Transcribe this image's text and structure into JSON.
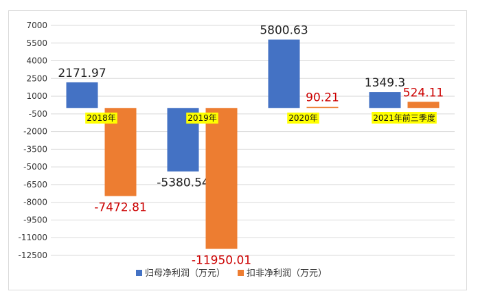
{
  "chart_data": {
    "type": "bar",
    "categories": [
      "2018年",
      "2019年",
      "2020年",
      "2021年前三季度"
    ],
    "series": [
      {
        "name": "归母净利润（万元）",
        "values": [
          2171.97,
          -5380.54,
          5800.63,
          1349.3
        ],
        "labels": [
          "2171.97",
          "-5380.54",
          "5800.63",
          "1349.3"
        ],
        "color": "#4472c4",
        "label_color": "#222222"
      },
      {
        "name": "扣非净利润（万元）",
        "values": [
          -7472.81,
          -11950.01,
          90.21,
          524.11
        ],
        "labels": [
          "-7472.81",
          "-11950.01",
          "90.21",
          "524.11"
        ],
        "color": "#ed7d31",
        "label_color": "#cc0000"
      }
    ],
    "ylim": [
      -12500,
      7000
    ],
    "yticks": [
      "7000",
      "5500",
      "4000",
      "2500",
      "1000",
      "-500",
      "-2000",
      "-3500",
      "-5000",
      "-6500",
      "-8000",
      "-9500",
      "-11000",
      "-12500"
    ],
    "ytick_values": [
      7000,
      5500,
      4000,
      2500,
      1000,
      -500,
      -2000,
      -3500,
      -5000,
      -6500,
      -8000,
      -9500,
      -11000,
      -12500
    ],
    "grid": true,
    "legend_position": "bottom",
    "category_label_highlight": "#ffff00",
    "gridline_color": "#d9d9d9"
  }
}
